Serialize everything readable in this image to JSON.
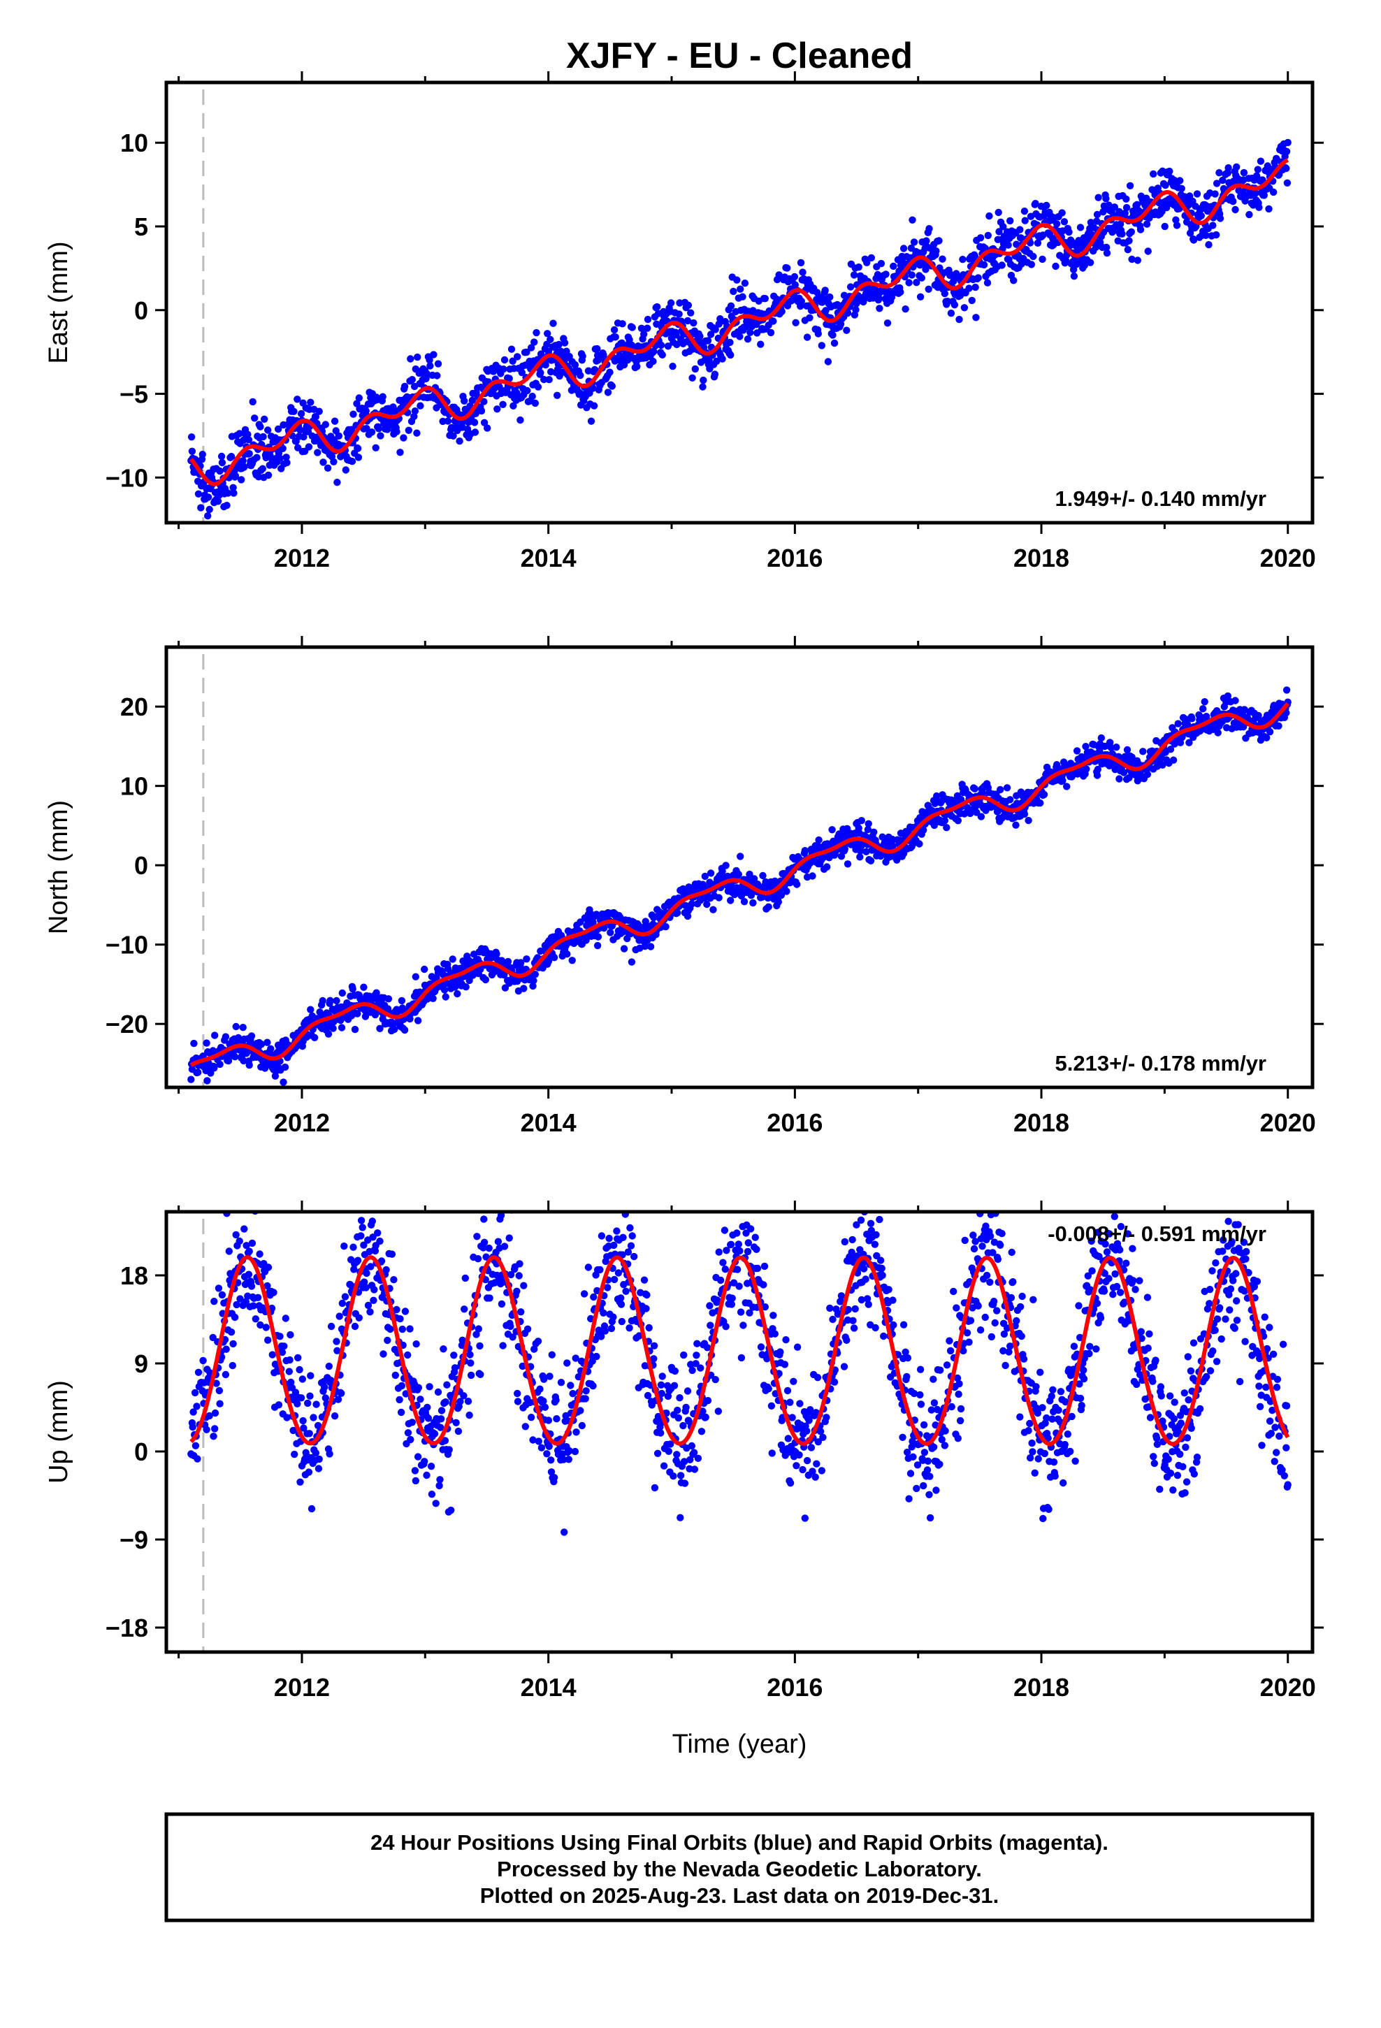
{
  "title": "XJFY  - EU - Cleaned",
  "x_axis_label": "Time (year)",
  "footer": {
    "lines": [
      "24 Hour Positions Using Final Orbits (blue) and Rapid Orbits (magenta).",
      "Processed by the Nevada Geodetic Laboratory.",
      "Plotted on 2025-Aug-23. Last data on 2019-Dec-31."
    ]
  },
  "colors": {
    "data_points": "#0000ff",
    "model_line": "#ff0000",
    "equipment_change_line": "#bbbbbb"
  },
  "chart_data": [
    {
      "type": "scatter",
      "ylabel": "East (mm)",
      "rate_text": "1.949+/- 0.140 mm/yr",
      "xlim": [
        2010.9,
        2020.2
      ],
      "ylim": [
        -12.7,
        13.6
      ],
      "xticks": [
        2012,
        2014,
        2016,
        2018,
        2020
      ],
      "yticks": [
        -10,
        -5,
        0,
        5,
        10
      ],
      "y_tick_labels": [
        "−10",
        "−5",
        "0",
        "5",
        "10"
      ],
      "equipment_change_year": 2011.2,
      "data_start": 2011.1,
      "data_end": 2020.0,
      "model": {
        "rate_mm_per_yr": 1.949,
        "value_at_start_mm": -8.9,
        "annual_cos_mm": 0.5,
        "annual_sin_mm": -0.5,
        "semiannual_cos_mm": 0.6,
        "semiannual_sin_mm": 0.3,
        "scatter_sd_mm": 0.85
      }
    },
    {
      "type": "scatter",
      "ylabel": "North (mm)",
      "rate_text": "5.213+/- 0.178 mm/yr",
      "xlim": [
        2010.9,
        2020.2
      ],
      "ylim": [
        -28,
        27.5
      ],
      "xticks": [
        2012,
        2014,
        2016,
        2018,
        2020
      ],
      "yticks": [
        -20,
        -10,
        0,
        10,
        20
      ],
      "y_tick_labels": [
        "−20",
        "−10",
        "0",
        "10",
        "20"
      ],
      "equipment_change_year": 2011.2,
      "data_start": 2011.1,
      "data_end": 2020.0,
      "model": {
        "rate_mm_per_yr": 5.213,
        "value_at_start_mm": -25.2,
        "annual_cos_mm": -0.6,
        "annual_sin_mm": 1.3,
        "semiannual_cos_mm": 0.5,
        "semiannual_sin_mm": 0.3,
        "scatter_sd_mm": 1.0
      }
    },
    {
      "type": "scatter",
      "ylabel": "Up (mm)",
      "rate_text": "-0.008+/- 0.591 mm/yr",
      "xlim": [
        2010.9,
        2020.2
      ],
      "ylim": [
        -20.5,
        24.5
      ],
      "xticks": [
        2012,
        2014,
        2016,
        2018,
        2020
      ],
      "yticks": [
        -18,
        -9,
        0,
        9,
        18
      ],
      "y_tick_labels": [
        "−18",
        "−9",
        "0",
        "9",
        "18"
      ],
      "equipment_change_year": 2011.2,
      "data_start": 2011.1,
      "data_end": 2020.0,
      "model": {
        "rate_mm_per_yr": -0.008,
        "value_at_start_mm": 1.0,
        "annual_cos_mm": -8.8,
        "annual_sin_mm": -3.6,
        "semiannual_cos_mm": 0.4,
        "semiannual_sin_mm": 0.2,
        "scatter_sd_mm": 3.4
      }
    }
  ]
}
